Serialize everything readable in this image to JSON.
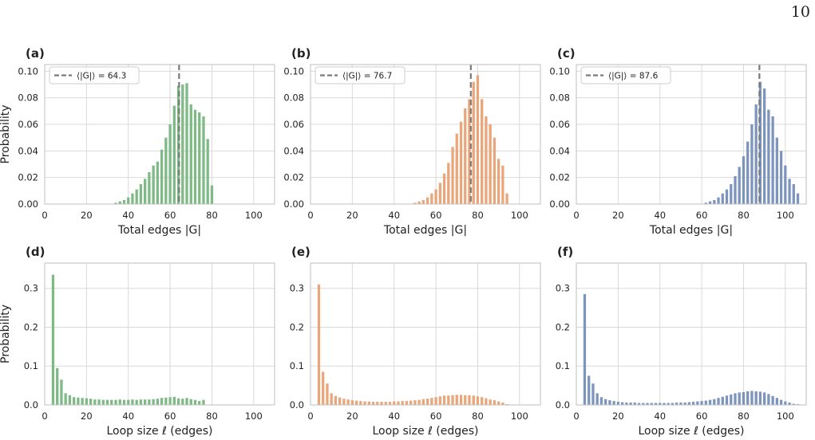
{
  "page_number": "10",
  "style": {
    "green": "#7eb986",
    "orange": "#e8a67a",
    "blue": "#7d94bd",
    "mean_line": "#7a7a7a",
    "grid": "#d9d9d9"
  },
  "chart_data": [
    {
      "panel": "(a)",
      "type": "bar",
      "color": "#7eb986",
      "xlabel": "Total edges |G|",
      "ylabel": "Probability",
      "xlim": [
        0,
        110
      ],
      "ylim": [
        0,
        0.105
      ],
      "xticks": [
        0,
        20,
        40,
        60,
        80,
        100
      ],
      "yticks": [
        0.0,
        0.02,
        0.04,
        0.06,
        0.08,
        0.1
      ],
      "ytick_labels": [
        "0.00",
        "0.02",
        "0.04",
        "0.06",
        "0.08",
        "0.10"
      ],
      "mean": 64.3,
      "legend": "⟨|G|⟩ = 64.3",
      "legend_loc": "upper left",
      "x": [
        34,
        36,
        38,
        40,
        42,
        44,
        46,
        48,
        50,
        52,
        54,
        56,
        58,
        60,
        62,
        64,
        66,
        68,
        70,
        72,
        74,
        76,
        78,
        80
      ],
      "values": [
        0.001,
        0.002,
        0.003,
        0.005,
        0.008,
        0.011,
        0.015,
        0.019,
        0.024,
        0.029,
        0.032,
        0.041,
        0.05,
        0.06,
        0.074,
        0.089,
        0.09,
        0.091,
        0.075,
        0.071,
        0.069,
        0.066,
        0.049,
        0.014
      ]
    },
    {
      "panel": "(b)",
      "type": "bar",
      "color": "#e8a67a",
      "xlabel": "Total edges |G|",
      "ylabel": "",
      "xlim": [
        0,
        110
      ],
      "ylim": [
        0,
        0.105
      ],
      "xticks": [
        0,
        20,
        40,
        60,
        80,
        100
      ],
      "yticks": [
        0.0,
        0.02,
        0.04,
        0.06,
        0.08,
        0.1
      ],
      "ytick_labels": [
        "0.00",
        "0.02",
        "0.04",
        "0.06",
        "0.08",
        "0.10"
      ],
      "mean": 76.7,
      "legend": "⟨|G|⟩ = 76.7",
      "legend_loc": "upper left",
      "x": [
        50,
        52,
        54,
        56,
        58,
        60,
        62,
        64,
        66,
        68,
        70,
        72,
        74,
        76,
        78,
        80,
        82,
        84,
        86,
        88,
        90,
        92,
        94
      ],
      "values": [
        0.001,
        0.002,
        0.003,
        0.005,
        0.008,
        0.011,
        0.016,
        0.023,
        0.031,
        0.043,
        0.053,
        0.062,
        0.072,
        0.079,
        0.092,
        0.097,
        0.079,
        0.066,
        0.06,
        0.05,
        0.034,
        0.029,
        0.008
      ]
    },
    {
      "panel": "(c)",
      "type": "bar",
      "color": "#7d94bd",
      "xlabel": "Total edges |G|",
      "ylabel": "",
      "xlim": [
        0,
        110
      ],
      "ylim": [
        0,
        0.105
      ],
      "xticks": [
        0,
        20,
        40,
        60,
        80,
        100
      ],
      "yticks": [
        0.0,
        0.02,
        0.04,
        0.06,
        0.08,
        0.1
      ],
      "ytick_labels": [
        "0.00",
        "0.02",
        "0.04",
        "0.06",
        "0.08",
        "0.10"
      ],
      "mean": 87.6,
      "legend": "⟨|G|⟩ = 87.6",
      "legend_loc": "upper left",
      "x": [
        62,
        64,
        66,
        68,
        70,
        72,
        74,
        76,
        78,
        80,
        82,
        84,
        86,
        88,
        90,
        92,
        94,
        96,
        98,
        100,
        102,
        104,
        106
      ],
      "values": [
        0.001,
        0.002,
        0.003,
        0.005,
        0.008,
        0.011,
        0.015,
        0.021,
        0.028,
        0.036,
        0.047,
        0.06,
        0.075,
        0.092,
        0.087,
        0.071,
        0.066,
        0.05,
        0.04,
        0.029,
        0.019,
        0.015,
        0.008
      ]
    },
    {
      "panel": "(d)",
      "type": "bar",
      "color": "#7eb986",
      "xlabel": "Loop size ℓ (edges)",
      "ylabel": "Probability",
      "xlim": [
        0,
        110
      ],
      "ylim": [
        0,
        0.365
      ],
      "xticks": [
        0,
        20,
        40,
        60,
        80,
        100
      ],
      "yticks": [
        0.0,
        0.1,
        0.2,
        0.3
      ],
      "ytick_labels": [
        "0.0",
        "0.1",
        "0.2",
        "0.3"
      ],
      "x": [
        4,
        6,
        8,
        10,
        12,
        14,
        16,
        18,
        20,
        22,
        24,
        26,
        28,
        30,
        32,
        34,
        36,
        38,
        40,
        42,
        44,
        46,
        48,
        50,
        52,
        54,
        56,
        58,
        60,
        62,
        64,
        66,
        68,
        70,
        72,
        74,
        76
      ],
      "values": [
        0.335,
        0.095,
        0.065,
        0.03,
        0.025,
        0.02,
        0.019,
        0.018,
        0.017,
        0.016,
        0.014,
        0.014,
        0.013,
        0.013,
        0.013,
        0.013,
        0.014,
        0.013,
        0.013,
        0.014,
        0.013,
        0.014,
        0.014,
        0.014,
        0.015,
        0.016,
        0.018,
        0.019,
        0.02,
        0.021,
        0.017,
        0.016,
        0.018,
        0.015,
        0.013,
        0.01,
        0.013
      ]
    },
    {
      "panel": "(e)",
      "type": "bar",
      "color": "#e8a67a",
      "xlabel": "Loop size ℓ (edges)",
      "ylabel": "",
      "xlim": [
        0,
        110
      ],
      "ylim": [
        0,
        0.365
      ],
      "xticks": [
        0,
        20,
        40,
        60,
        80,
        100
      ],
      "yticks": [
        0.0,
        0.1,
        0.2,
        0.3
      ],
      "ytick_labels": [
        "0.0",
        "0.1",
        "0.2",
        "0.3"
      ],
      "x": [
        4,
        6,
        8,
        10,
        12,
        14,
        16,
        18,
        20,
        22,
        24,
        26,
        28,
        30,
        32,
        34,
        36,
        38,
        40,
        42,
        44,
        46,
        48,
        50,
        52,
        54,
        56,
        58,
        60,
        62,
        64,
        66,
        68,
        70,
        72,
        74,
        76,
        78,
        80,
        82,
        84,
        86,
        88,
        90,
        92,
        94
      ],
      "values": [
        0.31,
        0.085,
        0.055,
        0.03,
        0.023,
        0.019,
        0.016,
        0.014,
        0.012,
        0.011,
        0.01,
        0.009,
        0.009,
        0.008,
        0.008,
        0.008,
        0.008,
        0.008,
        0.009,
        0.009,
        0.01,
        0.01,
        0.011,
        0.012,
        0.013,
        0.015,
        0.016,
        0.018,
        0.02,
        0.022,
        0.024,
        0.024,
        0.025,
        0.026,
        0.026,
        0.025,
        0.025,
        0.024,
        0.022,
        0.02,
        0.017,
        0.014,
        0.012,
        0.009,
        0.006,
        0.002
      ]
    },
    {
      "panel": "(f)",
      "type": "bar",
      "color": "#7d94bd",
      "xlabel": "Loop size ℓ (edges)",
      "ylabel": "",
      "xlim": [
        0,
        110
      ],
      "ylim": [
        0,
        0.365
      ],
      "xticks": [
        0,
        20,
        40,
        60,
        80,
        100
      ],
      "yticks": [
        0.0,
        0.1,
        0.2,
        0.3
      ],
      "ytick_labels": [
        "0.0",
        "0.1",
        "0.2",
        "0.3"
      ],
      "x": [
        4,
        6,
        8,
        10,
        12,
        14,
        16,
        18,
        20,
        22,
        24,
        26,
        28,
        30,
        32,
        34,
        36,
        38,
        40,
        42,
        44,
        46,
        48,
        50,
        52,
        54,
        56,
        58,
        60,
        62,
        64,
        66,
        68,
        70,
        72,
        74,
        76,
        78,
        80,
        82,
        84,
        86,
        88,
        90,
        92,
        94,
        96,
        98,
        100,
        102,
        104,
        106
      ],
      "values": [
        0.285,
        0.075,
        0.055,
        0.03,
        0.02,
        0.015,
        0.012,
        0.01,
        0.008,
        0.007,
        0.006,
        0.006,
        0.006,
        0.005,
        0.005,
        0.005,
        0.005,
        0.005,
        0.005,
        0.005,
        0.005,
        0.005,
        0.006,
        0.006,
        0.006,
        0.007,
        0.008,
        0.009,
        0.01,
        0.011,
        0.013,
        0.015,
        0.018,
        0.021,
        0.024,
        0.027,
        0.03,
        0.032,
        0.033,
        0.035,
        0.036,
        0.035,
        0.034,
        0.032,
        0.028,
        0.023,
        0.018,
        0.013,
        0.009,
        0.006,
        0.003,
        0.002
      ]
    }
  ]
}
